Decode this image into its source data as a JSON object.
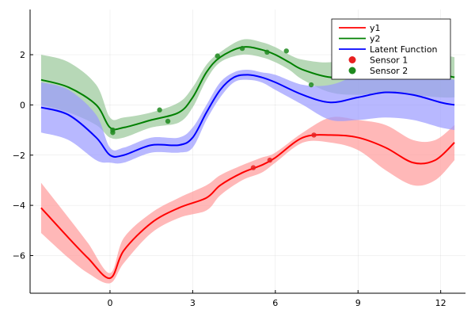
{
  "chart_data": {
    "type": "line",
    "title": "",
    "xlabel": "",
    "ylabel": "",
    "xlim": [
      -2.9,
      12.9
    ],
    "ylim": [
      -7.5,
      3.8
    ],
    "xticks": [
      0,
      3,
      6,
      9,
      12
    ],
    "yticks": [
      -6,
      -4,
      -2,
      0,
      2
    ],
    "x_tick_labels": [
      "0",
      "3",
      "6",
      "9",
      "12"
    ],
    "y_tick_labels": [
      "−6",
      "−4",
      "−2",
      "0",
      "2"
    ],
    "grid": true,
    "legend_position": "top-right",
    "colors": {
      "y1": "#ff0000",
      "y2": "#008000",
      "latent": "#0000ff",
      "sensor1": "#e82020",
      "sensor2": "#1e8a1e"
    },
    "legend": [
      {
        "label": "y1",
        "kind": "line",
        "color": "#ff0000"
      },
      {
        "label": "y2",
        "kind": "line",
        "color": "#008000"
      },
      {
        "label": "Latent Function",
        "kind": "line",
        "color": "#0000ff"
      },
      {
        "label": "Sensor 1",
        "kind": "marker",
        "color": "#e82020"
      },
      {
        "label": "Sensor 2",
        "kind": "marker",
        "color": "#1e8a1e"
      }
    ],
    "series": [
      {
        "name": "y1",
        "color": "#ff0000",
        "band_color": "#ff9a9a",
        "x": [
          -2.5,
          -1.5,
          -0.8,
          0.0,
          0.5,
          1.5,
          2.5,
          3.5,
          4.0,
          4.8,
          5.5,
          6.0,
          7.0,
          8.0,
          9.0,
          10.0,
          11.0,
          11.8,
          12.5
        ],
        "y": [
          -4.1,
          -5.3,
          -6.1,
          -6.9,
          -5.8,
          -4.7,
          -4.1,
          -3.7,
          -3.2,
          -2.7,
          -2.4,
          -2.1,
          -1.3,
          -1.2,
          -1.3,
          -1.7,
          -2.3,
          -2.2,
          -1.5
        ],
        "lower": [
          -5.1,
          -6.1,
          -6.7,
          -7.1,
          -6.3,
          -5.1,
          -4.5,
          -4.2,
          -3.6,
          -3.0,
          -2.7,
          -2.3,
          -1.5,
          -1.5,
          -1.8,
          -2.6,
          -3.2,
          -3.0,
          -2.2
        ],
        "upper": [
          -3.1,
          -4.5,
          -5.5,
          -6.7,
          -5.3,
          -4.3,
          -3.7,
          -3.2,
          -2.8,
          -2.4,
          -2.1,
          -1.9,
          -1.1,
          -0.5,
          -0.6,
          -0.8,
          -1.4,
          -1.4,
          -0.8
        ]
      },
      {
        "name": "y2",
        "color": "#008000",
        "band_color": "#99c799",
        "x": [
          -2.5,
          -1.5,
          -0.5,
          0.0,
          0.5,
          1.5,
          2.5,
          3.0,
          3.5,
          4.0,
          4.8,
          5.5,
          6.0,
          6.5,
          7.0,
          8.0,
          9.0,
          10.0,
          11.0,
          12.0,
          12.5
        ],
        "y": [
          1.0,
          0.7,
          0.0,
          -0.9,
          -0.9,
          -0.6,
          -0.3,
          0.3,
          1.3,
          1.9,
          2.3,
          2.2,
          2.0,
          1.7,
          1.4,
          1.1,
          1.2,
          1.4,
          1.3,
          1.2,
          1.1
        ],
        "lower": [
          0.0,
          -0.3,
          -0.8,
          -1.3,
          -1.3,
          -0.9,
          -0.7,
          -0.1,
          1.0,
          1.7,
          2.0,
          1.9,
          1.7,
          1.4,
          1.0,
          0.5,
          0.4,
          0.5,
          0.4,
          0.3,
          0.3
        ],
        "upper": [
          2.0,
          1.7,
          0.8,
          -0.5,
          -0.5,
          -0.3,
          0.1,
          0.7,
          1.6,
          2.1,
          2.6,
          2.5,
          2.3,
          2.0,
          1.8,
          1.7,
          2.0,
          2.2,
          2.1,
          2.0,
          1.9
        ]
      },
      {
        "name": "Latent Function",
        "color": "#0000ff",
        "band_color": "#9a9aff",
        "x": [
          -2.5,
          -1.5,
          -0.5,
          0.0,
          0.5,
          1.5,
          2.5,
          3.0,
          3.5,
          4.0,
          4.5,
          5.0,
          5.5,
          6.0,
          7.0,
          8.0,
          9.0,
          10.0,
          11.0,
          12.0,
          12.5
        ],
        "y": [
          -0.1,
          -0.4,
          -1.3,
          -2.0,
          -2.0,
          -1.6,
          -1.6,
          -1.3,
          -0.3,
          0.6,
          1.1,
          1.2,
          1.1,
          0.9,
          0.4,
          0.1,
          0.3,
          0.5,
          0.4,
          0.1,
          0.0
        ],
        "lower": [
          -1.1,
          -1.4,
          -2.2,
          -2.3,
          -2.3,
          -1.9,
          -1.9,
          -1.7,
          -0.6,
          0.3,
          0.9,
          1.0,
          0.9,
          0.6,
          0.0,
          -0.6,
          -0.6,
          -0.5,
          -0.6,
          -0.9,
          -1.0
        ],
        "upper": [
          0.9,
          0.6,
          -0.4,
          -1.7,
          -1.7,
          -1.3,
          -1.3,
          -0.9,
          0.0,
          0.9,
          1.3,
          1.4,
          1.3,
          1.2,
          0.8,
          0.8,
          1.2,
          1.5,
          1.4,
          1.1,
          1.0
        ]
      }
    ],
    "scatter": [
      {
        "name": "Sensor 1",
        "color": "#e82020",
        "points": [
          [
            5.2,
            -2.5
          ],
          [
            5.8,
            -2.2
          ],
          [
            7.4,
            -1.2
          ]
        ]
      },
      {
        "name": "Sensor 2",
        "color": "#1e8a1e",
        "points": [
          [
            0.1,
            -1.0
          ],
          [
            0.1,
            -1.1
          ],
          [
            1.8,
            -0.2
          ],
          [
            2.1,
            -0.65
          ],
          [
            3.9,
            1.95
          ],
          [
            4.8,
            2.25
          ],
          [
            5.7,
            2.1
          ],
          [
            6.4,
            2.15
          ],
          [
            7.3,
            0.8
          ]
        ]
      }
    ]
  }
}
